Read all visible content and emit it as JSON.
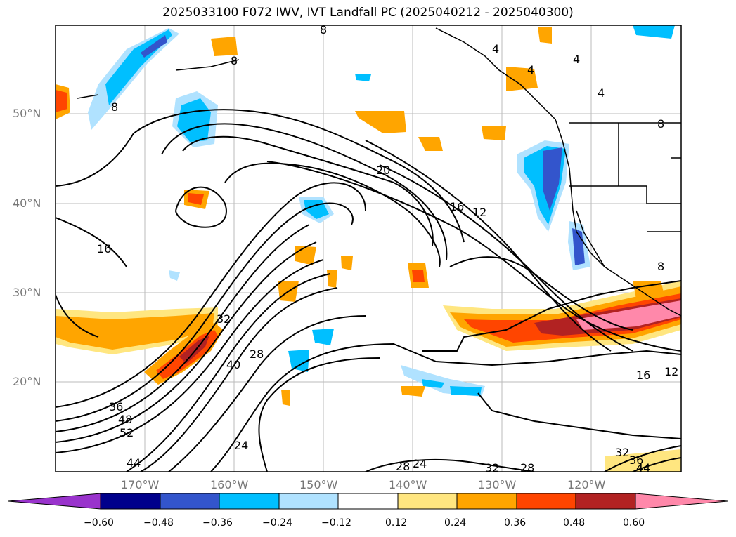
{
  "title": "2025033100 F072 IWV, IVT Landfall PC (2025040212 - 2025040300)",
  "lat_labels": [
    "50°N",
    "40°N",
    "30°N",
    "20°N"
  ],
  "lon_labels": [
    "170°W",
    "160°W",
    "150°W",
    "140°W",
    "130°W",
    "120°W"
  ],
  "colorbar": {
    "ticks": [
      "−0.60",
      "−0.48",
      "−0.36",
      "−0.24",
      "−0.12",
      "0.12",
      "0.24",
      "0.36",
      "0.48",
      "0.60"
    ],
    "colors": [
      "#9933cc",
      "#00008b",
      "#3355cc",
      "#00bfff",
      "#b0e2ff",
      "#ffffff",
      "#ffe680",
      "#ffa500",
      "#ff4500",
      "#b22222",
      "#ff88aa"
    ]
  },
  "contour_labels": [
    "8",
    "8",
    "8",
    "4",
    "4",
    "4",
    "4",
    "8",
    "20",
    "16",
    "12",
    "16",
    "32",
    "40",
    "28",
    "36",
    "48",
    "52",
    "44",
    "24",
    "28",
    "24",
    "32",
    "28",
    "32",
    "36",
    "44",
    "16",
    "12",
    "8"
  ],
  "coastline_color": "#000000"
}
